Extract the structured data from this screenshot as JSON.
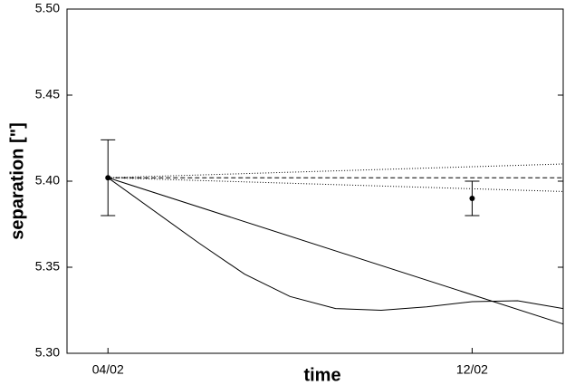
{
  "chart_data": {
    "type": "line",
    "xlabel": "time",
    "ylabel": "separation [\"]",
    "xlim": [
      -0.9,
      10
    ],
    "xticks": [
      {
        "value": 0,
        "label": "04/02"
      },
      {
        "value": 8,
        "label": "12/02"
      }
    ],
    "ylim": [
      5.3,
      5.5
    ],
    "yticks": [
      {
        "value": 5.3,
        "label": "5.30"
      },
      {
        "value": 5.35,
        "label": "5.35"
      },
      {
        "value": 5.4,
        "label": "5.40"
      },
      {
        "value": 5.45,
        "label": "5.45"
      },
      {
        "value": 5.5,
        "label": "5.50"
      }
    ],
    "series": [
      {
        "style": "solid",
        "color": "#000000",
        "x": [
          0,
          10
        ],
        "values": [
          5.402,
          5.317
        ]
      },
      {
        "style": "solid",
        "color": "#000000",
        "x": [
          0,
          2,
          3,
          4,
          5,
          6,
          7,
          8,
          9,
          10
        ],
        "values": [
          5.402,
          5.364,
          5.346,
          5.333,
          5.326,
          5.325,
          5.327,
          5.33,
          5.3305,
          5.326
        ]
      },
      {
        "style": "dashed",
        "color": "#000000",
        "x": [
          0,
          10
        ],
        "values": [
          5.402,
          5.402
        ]
      },
      {
        "style": "dotted",
        "color": "#000000",
        "x": [
          0,
          10
        ],
        "values": [
          5.402,
          5.41
        ]
      },
      {
        "style": "dotted",
        "color": "#000000",
        "x": [
          0,
          10
        ],
        "values": [
          5.402,
          5.394
        ]
      }
    ],
    "points": {
      "color": "#000000",
      "x": [
        0,
        8
      ],
      "values": [
        5.402,
        5.39
      ],
      "errors": [
        0.022,
        0.01
      ]
    }
  }
}
